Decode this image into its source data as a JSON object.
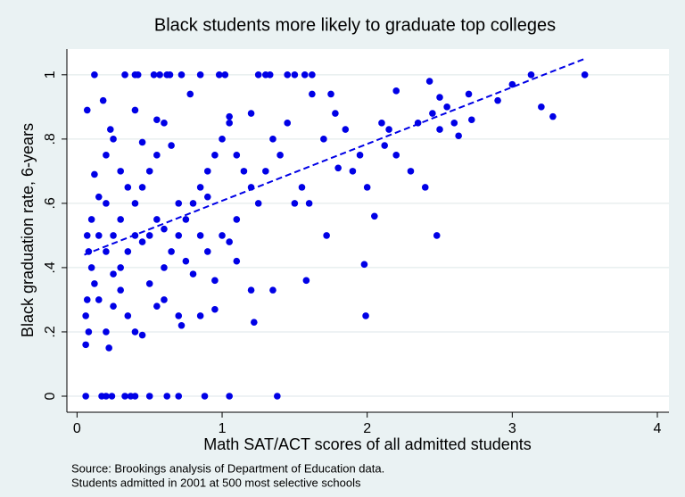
{
  "chart_data": {
    "type": "scatter",
    "title": "Black students more likely to graduate top colleges",
    "xlabel": "Math SAT/ACT scores of all admitted students",
    "ylabel": "Black graduation rate, 6-years",
    "notes": [
      "Source: Brookings analysis of Department of Education data.",
      "Students admitted in 2001 at 500 most selective schools"
    ],
    "xlim": [
      -0.07,
      4.08
    ],
    "ylim": [
      -0.05,
      1.08
    ],
    "xticks": [
      0,
      1,
      2,
      3,
      4
    ],
    "yticks": [
      0,
      {
        "value": 0.2,
        "label": ".2"
      },
      {
        "value": 0.4,
        "label": ".4"
      },
      {
        "value": 0.6,
        "label": ".6"
      },
      {
        "value": 0.8,
        "label": ".8"
      },
      1
    ],
    "grid": true,
    "color": "#0000e6",
    "points": {
      "x": [
        0.06,
        0.17,
        0.2,
        0.24,
        0.33,
        0.37,
        0.4,
        0.5,
        0.62,
        0.7,
        0.88,
        1.05,
        1.38,
        0.12,
        0.33,
        0.4,
        0.42,
        0.53,
        0.57,
        0.62,
        0.64,
        0.72,
        0.85,
        0.98,
        1.02,
        1.25,
        1.3,
        1.33,
        1.45,
        1.5,
        1.57,
        1.62,
        3.13,
        3.5,
        0.07,
        0.18,
        0.4,
        0.78,
        0.55,
        0.23,
        0.25,
        0.45,
        0.12,
        0.15,
        0.2,
        0.3,
        0.35,
        0.1,
        0.07,
        0.08,
        0.1,
        0.12,
        0.07,
        0.06,
        0.08,
        0.06,
        0.2,
        0.22,
        0.25,
        0.3,
        0.2,
        0.25,
        0.3,
        0.35,
        0.4,
        0.45,
        0.5,
        0.55,
        0.6,
        0.4,
        0.45,
        0.5,
        0.55,
        0.6,
        0.65,
        0.7,
        0.75,
        0.8,
        0.85,
        0.9,
        0.95,
        1.0,
        1.05,
        1.1,
        1.15,
        1.2,
        0.4,
        0.45,
        0.55,
        0.6,
        0.7,
        0.72,
        0.85,
        0.95,
        0.35,
        0.5,
        0.6,
        0.65,
        0.7,
        0.75,
        0.8,
        0.85,
        0.9,
        0.95,
        1.0,
        1.05,
        1.1,
        1.1,
        1.2,
        1.22,
        1.35,
        1.25,
        1.3,
        1.35,
        1.4,
        1.45,
        1.5,
        1.55,
        1.6,
        1.58,
        1.62,
        1.7,
        1.75,
        1.78,
        1.8,
        1.72,
        1.85,
        1.9,
        1.95,
        2.0,
        2.05,
        2.1,
        2.12,
        2.15,
        2.2,
        2.2,
        2.3,
        2.35,
        2.4,
        2.43,
        2.45,
        2.5,
        2.5,
        2.55,
        2.6,
        2.63,
        2.7,
        2.72,
        2.9,
        3.0,
        3.2,
        3.28,
        2.48,
        1.98,
        1.99,
        1.05,
        1.2,
        0.9,
        0.2,
        0.15,
        0.3,
        0.25,
        0.15
      ],
      "y": [
        0,
        0,
        0,
        0,
        0,
        0,
        0,
        0,
        0,
        0,
        0,
        0,
        0,
        1,
        1,
        1,
        1,
        1,
        1,
        1,
        1,
        1,
        1,
        1,
        1,
        1,
        1,
        1,
        1,
        1,
        1,
        1,
        1,
        1,
        0.89,
        0.92,
        0.89,
        0.94,
        0.86,
        0.83,
        0.8,
        0.79,
        0.69,
        0.62,
        0.75,
        0.7,
        0.65,
        0.55,
        0.5,
        0.45,
        0.4,
        0.35,
        0.3,
        0.25,
        0.2,
        0.16,
        0.2,
        0.15,
        0.28,
        0.33,
        0.45,
        0.5,
        0.55,
        0.45,
        0.5,
        0.48,
        0.5,
        0.55,
        0.52,
        0.6,
        0.65,
        0.7,
        0.75,
        0.4,
        0.45,
        0.5,
        0.55,
        0.6,
        0.65,
        0.7,
        0.75,
        0.8,
        0.85,
        0.75,
        0.7,
        0.65,
        0.2,
        0.19,
        0.28,
        0.3,
        0.25,
        0.22,
        0.25,
        0.27,
        0.25,
        0.35,
        0.85,
        0.78,
        0.6,
        0.42,
        0.38,
        0.5,
        0.45,
        0.36,
        0.5,
        0.48,
        0.55,
        0.42,
        0.33,
        0.23,
        0.33,
        0.6,
        0.7,
        0.8,
        0.75,
        0.85,
        0.6,
        0.65,
        0.6,
        0.36,
        0.94,
        0.8,
        0.94,
        0.88,
        0.71,
        0.5,
        0.83,
        0.7,
        0.75,
        0.65,
        0.56,
        0.85,
        0.78,
        0.83,
        0.75,
        0.95,
        0.7,
        0.85,
        0.65,
        0.98,
        0.88,
        0.93,
        0.83,
        0.9,
        0.85,
        0.81,
        0.94,
        0.86,
        0.92,
        0.97,
        0.9,
        0.87,
        0.5,
        0.41,
        0.25,
        0.87,
        0.88,
        0.62,
        0.6,
        0.5,
        0.4,
        0.38,
        0.3
      ]
    },
    "fit": {
      "x": [
        0.05,
        3.5
      ],
      "y": [
        0.44,
        1.05
      ]
    }
  }
}
